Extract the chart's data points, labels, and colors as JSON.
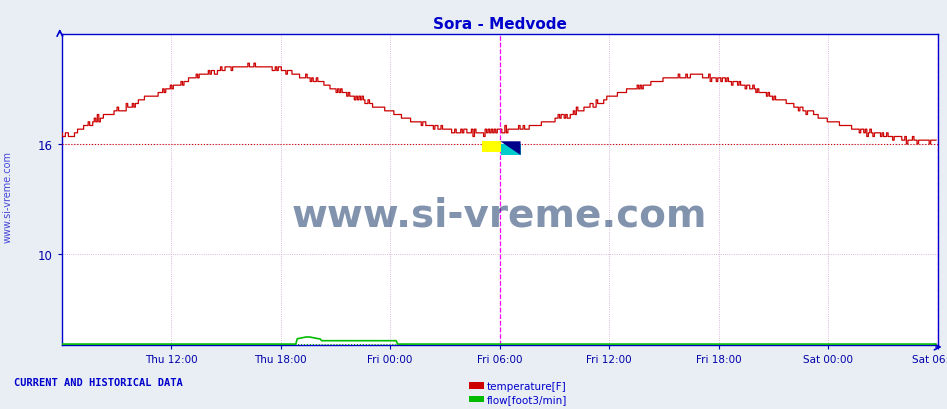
{
  "title": "Sora - Medvode",
  "title_color": "#0000cc",
  "bg_color": "#f0f4f8",
  "plot_bg_color": "#ffffff",
  "outer_bg_color": "#e8eef4",
  "ylabel_temp": "temperature[F]",
  "ylabel_flow": "flow[foot3/min]",
  "legend_label": "CURRENT AND HISTORICAL DATA",
  "xlim": [
    0,
    576
  ],
  "ylim_temp": [
    5,
    22
  ],
  "yticks": [
    10,
    16
  ],
  "xtick_positions": [
    72,
    144,
    216,
    288,
    360,
    432,
    504,
    576
  ],
  "xtick_labels": [
    "Thu 12:00",
    "Thu 18:00",
    "Fri 00:00",
    "Fri 06:00",
    "Fri 12:00",
    "Fri 18:00",
    "Sat 00:00",
    "Sat 06:00"
  ],
  "dashed_hline_y": 16,
  "dashed_hline_color": "#cc0000",
  "vline_positions": [
    288,
    576
  ],
  "vline_color": "#ff00ff",
  "temp_color": "#cc0000",
  "flow_color": "#00bb00",
  "watermark_text": "www.si-vreme.com",
  "watermark_color": "#1a3a6b",
  "side_label": "www.si-vreme.com",
  "axis_color": "#0000cc",
  "tick_color": "#0000aa",
  "grid_color": "#cc99cc",
  "grid_color2": "#cc99cc",
  "legend_color": "#0000cc",
  "flow_dot_color": "#00aa00"
}
